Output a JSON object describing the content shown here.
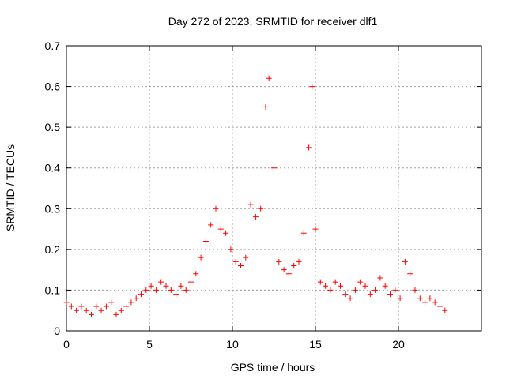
{
  "chart_data": {
    "type": "scatter",
    "title": "Day 272 of 2023, SRMTID for receiver dlf1",
    "xlabel": "GPS time / hours",
    "ylabel": "SRMTID / TECUs",
    "xlim": [
      0,
      25
    ],
    "ylim": [
      0,
      0.7
    ],
    "xticks": [
      0,
      5,
      10,
      15,
      20
    ],
    "yticks": [
      0,
      0.1,
      0.2,
      0.3,
      0.4,
      0.5,
      0.6,
      0.7
    ],
    "xtick_labels": [
      "0",
      "5",
      "10",
      "15",
      "20"
    ],
    "ytick_labels": [
      "0",
      "0.1",
      "0.2",
      "0.3",
      "0.4",
      "0.5",
      "0.6",
      "0.7"
    ],
    "grid": true,
    "marker": "+",
    "color": "#ff0000",
    "series": [
      {
        "name": "dlf1",
        "x": [
          0.0,
          0.3,
          0.6,
          0.9,
          1.2,
          1.5,
          1.8,
          2.1,
          2.4,
          2.7,
          3.0,
          3.3,
          3.6,
          3.9,
          4.2,
          4.5,
          4.8,
          5.1,
          5.4,
          5.7,
          6.0,
          6.3,
          6.6,
          6.9,
          7.2,
          7.5,
          7.8,
          8.1,
          8.4,
          8.7,
          9.0,
          9.3,
          9.6,
          9.9,
          10.2,
          10.5,
          10.8,
          11.1,
          11.4,
          11.7,
          12.0,
          12.2,
          12.5,
          12.8,
          13.1,
          13.4,
          13.7,
          14.0,
          14.3,
          14.6,
          14.8,
          15.0,
          15.3,
          15.6,
          15.9,
          16.2,
          16.5,
          16.8,
          17.1,
          17.4,
          17.7,
          18.0,
          18.3,
          18.6,
          18.9,
          19.2,
          19.5,
          19.8,
          20.1,
          20.4,
          20.7,
          21.0,
          21.3,
          21.6,
          21.9,
          22.2,
          22.5,
          22.8
        ],
        "values": [
          0.07,
          0.06,
          0.05,
          0.06,
          0.05,
          0.04,
          0.06,
          0.05,
          0.06,
          0.07,
          0.04,
          0.05,
          0.06,
          0.07,
          0.08,
          0.09,
          0.1,
          0.11,
          0.1,
          0.12,
          0.11,
          0.1,
          0.09,
          0.11,
          0.1,
          0.12,
          0.14,
          0.18,
          0.22,
          0.26,
          0.3,
          0.25,
          0.24,
          0.2,
          0.17,
          0.16,
          0.18,
          0.31,
          0.28,
          0.3,
          0.55,
          0.62,
          0.4,
          0.17,
          0.15,
          0.14,
          0.16,
          0.17,
          0.24,
          0.45,
          0.6,
          0.25,
          0.12,
          0.11,
          0.1,
          0.12,
          0.11,
          0.09,
          0.08,
          0.1,
          0.12,
          0.11,
          0.09,
          0.1,
          0.13,
          0.11,
          0.09,
          0.1,
          0.08,
          0.17,
          0.14,
          0.1,
          0.08,
          0.07,
          0.08,
          0.07,
          0.06,
          0.05
        ]
      }
    ]
  }
}
